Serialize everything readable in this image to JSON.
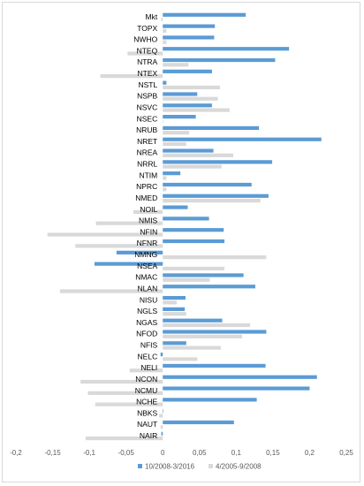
{
  "chart_data": {
    "type": "bar",
    "orientation": "horizontal",
    "categories": [
      "Mkt",
      "TOPX",
      "NWHO",
      "NTEQ",
      "NTRA",
      "NTEX",
      "NSTL",
      "NSPB",
      "NSVC",
      "NSEC",
      "NRUB",
      "NRET",
      "NREA",
      "NRRL",
      "NTIM",
      "NPRC",
      "NMED",
      "NOIL",
      "NMIS",
      "NFIN",
      "NFNR",
      "NMNG",
      "NSEA",
      "NMAC",
      "NLAN",
      "NISU",
      "NGLS",
      "NGAS",
      "NFOD",
      "NFIS",
      "NELC",
      "NELI",
      "NCON",
      "NCMU",
      "NCHE",
      "NBKS",
      "NAUT",
      "NAIR"
    ],
    "series": [
      {
        "name": "10/2008-3/2016",
        "color": "#5b9bd5",
        "values": [
          0.113,
          0.071,
          0.07,
          0.172,
          0.153,
          0.067,
          0.005,
          0.047,
          0.067,
          0.045,
          0.131,
          0.216,
          0.069,
          0.149,
          0.024,
          0.121,
          0.144,
          0.034,
          0.063,
          0.083,
          0.084,
          -0.063,
          -0.093,
          0.11,
          0.126,
          0.031,
          0.03,
          0.081,
          0.141,
          0.032,
          -0.003,
          0.14,
          0.21,
          0.2,
          0.128,
          0.0,
          0.097,
          -0.002
        ]
      },
      {
        "name": "4/2005-9/2008",
        "color": "#d9d9d9",
        "values": [
          -0.002,
          0.005,
          0.005,
          -0.048,
          0.035,
          -0.085,
          0.078,
          0.075,
          0.091,
          0.0,
          0.036,
          0.032,
          0.096,
          0.08,
          0.005,
          0.005,
          0.133,
          -0.04,
          -0.091,
          -0.157,
          -0.119,
          0.141,
          0.084,
          0.064,
          -0.14,
          0.019,
          0.032,
          0.119,
          0.108,
          0.079,
          0.047,
          -0.045,
          -0.112,
          -0.102,
          -0.092,
          -0.005,
          -0.003,
          -0.105
        ]
      }
    ],
    "xlim": [
      -0.2,
      0.25
    ],
    "xticks": [
      "-0,2",
      "-0,15",
      "-0,1",
      "-0,05",
      "0",
      "0,05",
      "0,1",
      "0,15",
      "0,2",
      "0,25"
    ],
    "grid": false,
    "legend_position": "bottom"
  }
}
